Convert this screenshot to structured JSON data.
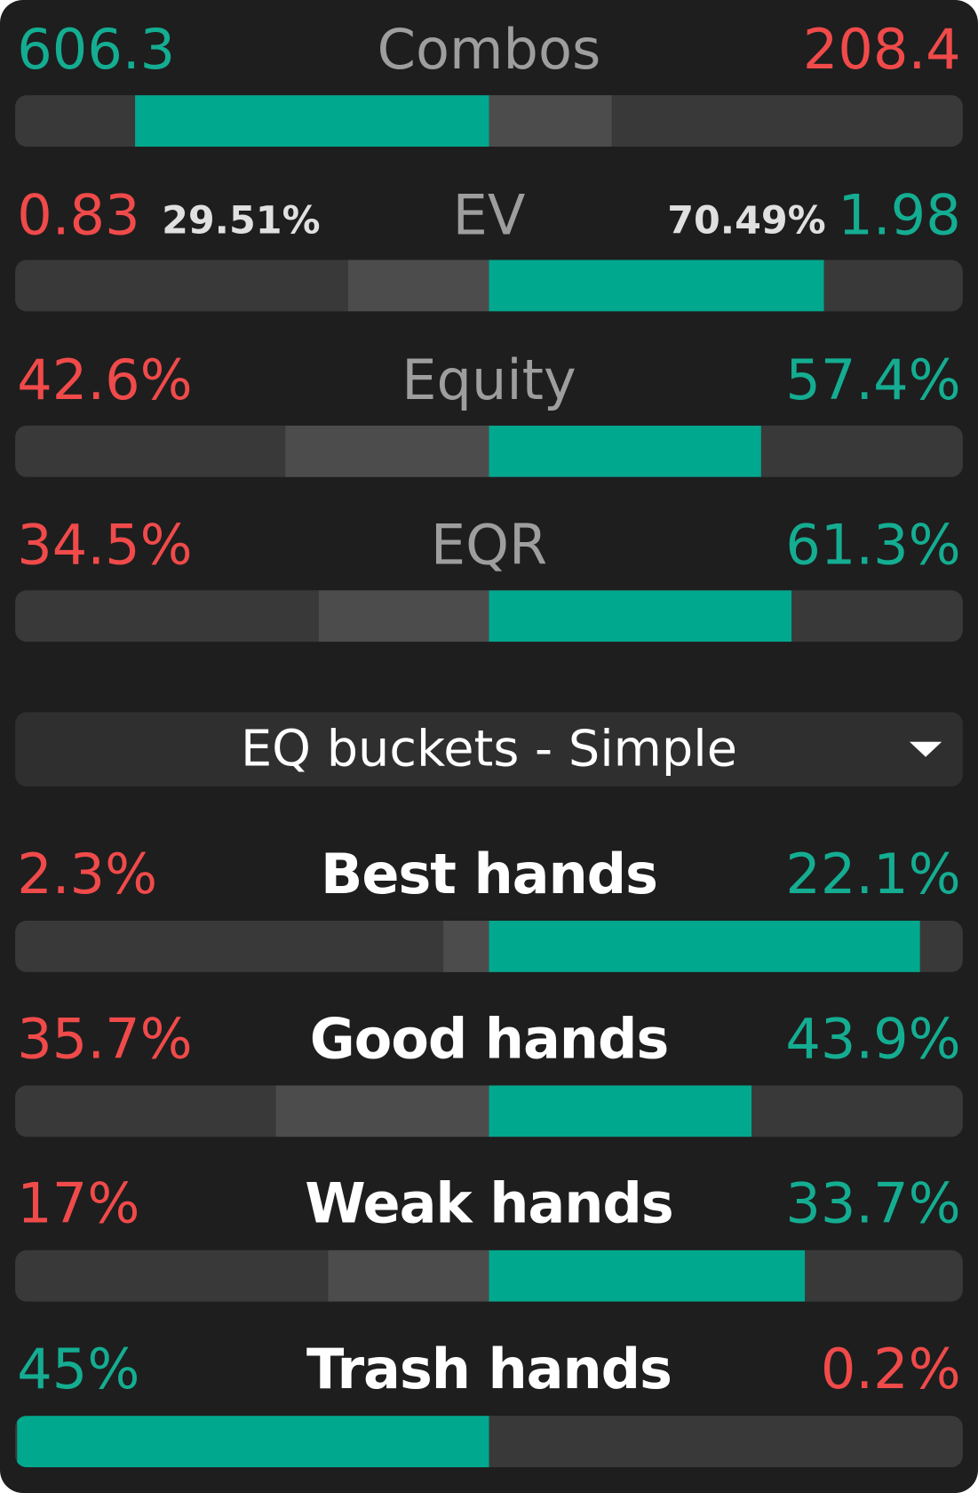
{
  "stats": [
    {
      "left": "606.3",
      "label": "Combos",
      "right": "208.4"
    },
    {
      "left": "0.83",
      "left_pct": "29.51%",
      "label": "EV",
      "right_pct": "70.49%",
      "right": "1.98"
    },
    {
      "left": "42.6%",
      "label": "Equity",
      "right": "57.4%"
    },
    {
      "left": "34.5%",
      "label": "EQR",
      "right": "61.3%"
    }
  ],
  "dropdown": {
    "label": "EQ buckets - Simple"
  },
  "buckets": [
    {
      "left": "2.3%",
      "label": "Best hands",
      "right": "22.1%"
    },
    {
      "left": "35.7%",
      "label": "Good hands",
      "right": "43.9%"
    },
    {
      "left": "17%",
      "label": "Weak hands",
      "right": "33.7%"
    },
    {
      "left": "45%",
      "label": "Trash hands",
      "right": "0.2%"
    }
  ]
}
